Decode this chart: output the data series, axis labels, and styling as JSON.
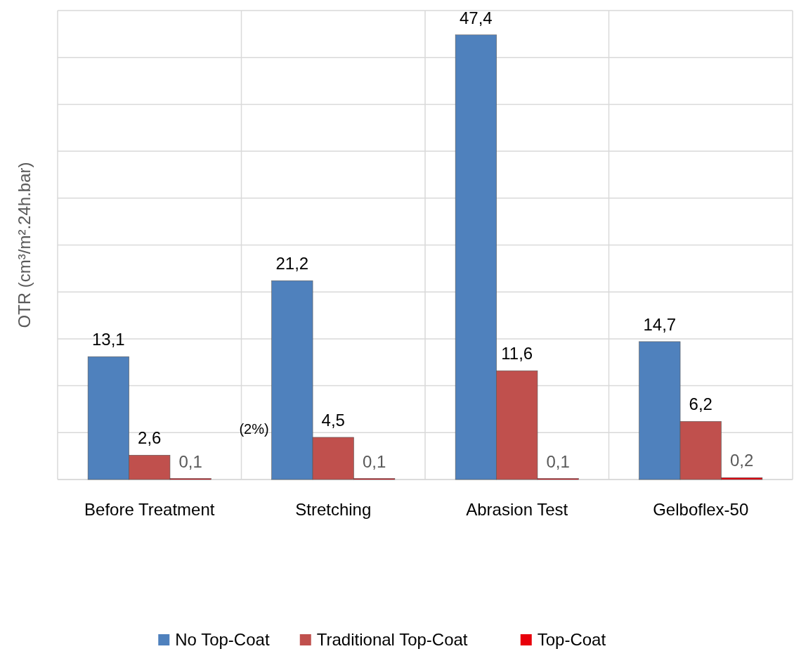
{
  "chart_data": {
    "type": "bar",
    "ylabel": "OTR (cm³/m².24h.bar)",
    "categories": [
      "Before Treatment",
      "Stretching",
      "Abrasion Test",
      "Gelboflex-50"
    ],
    "series": [
      {
        "name": "No Top-Coat",
        "color": "#4f81bd",
        "values": [
          13.1,
          21.2,
          47.4,
          14.7
        ],
        "value_labels": [
          "13,1",
          "21,2",
          "47,4",
          "14,7"
        ]
      },
      {
        "name": "Traditional Top-Coat",
        "color": "#c0504d",
        "values": [
          2.6,
          4.5,
          11.6,
          6.2
        ],
        "value_labels": [
          "2,6",
          "4,5",
          "11,6",
          "6,2"
        ]
      },
      {
        "name": "Top-Coat",
        "color": "#e8000b",
        "values": [
          0.1,
          0.1,
          0.1,
          0.2
        ],
        "value_labels": [
          "0,1",
          "0,1",
          "0,1",
          "0,2"
        ]
      }
    ],
    "annotations": [
      "(2%)"
    ],
    "ylim": [
      0,
      50
    ],
    "yticks": [
      {
        "value": 0,
        "label": null
      },
      {
        "value": 5,
        "label": null
      },
      {
        "value": 10,
        "label": null
      },
      {
        "value": 15,
        "label": null
      },
      {
        "value": 20,
        "label": null
      },
      {
        "value": 25,
        "label": null
      },
      {
        "value": 30,
        "label": null
      },
      {
        "value": 35,
        "label": null
      },
      {
        "value": 40,
        "label": null
      },
      {
        "value": 45,
        "label": null
      },
      {
        "value": 50,
        "label": null
      }
    ],
    "tick_labels": "x",
    "grid": true,
    "legend": "bottom"
  }
}
